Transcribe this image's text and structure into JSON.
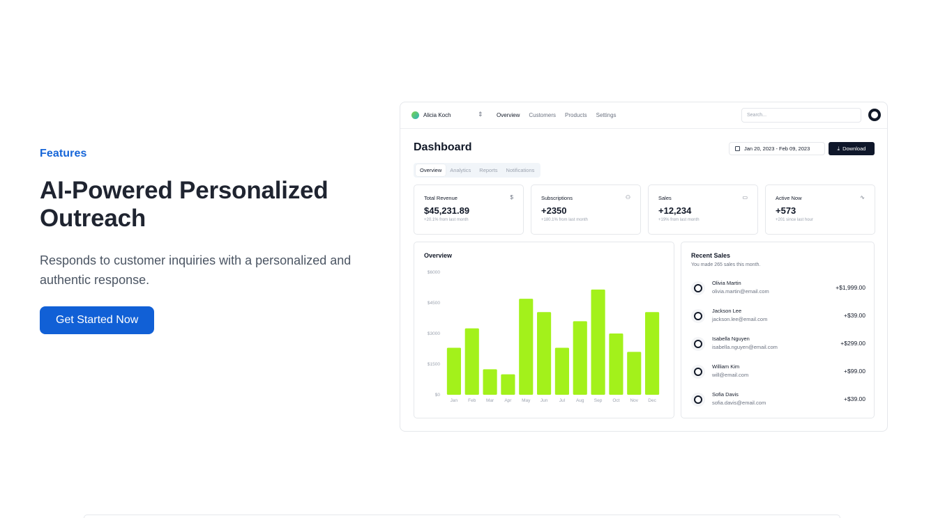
{
  "hero": {
    "eyebrow": "Features",
    "headline": "AI-Powered Personalized Outreach",
    "description": "Responds to customer inquiries with a personalized and authentic response.",
    "cta_label": "Get Started Now"
  },
  "dashboard": {
    "team_name": "Alicia Koch",
    "nav": [
      "Overview",
      "Customers",
      "Products",
      "Settings"
    ],
    "search_placeholder": "Search...",
    "title": "Dashboard",
    "date_range": "Jan 20, 2023 - Feb 09, 2023",
    "download_label": "Download",
    "tabs": [
      "Overview",
      "Analytics",
      "Reports",
      "Notifications"
    ],
    "stats": [
      {
        "label": "Total Revenue",
        "value": "$45,231.89",
        "sub": "+20.1% from last month",
        "icon": "dollar-icon"
      },
      {
        "label": "Subscriptions",
        "value": "+2350",
        "sub": "+180.1% from last month",
        "icon": "users-icon"
      },
      {
        "label": "Sales",
        "value": "+12,234",
        "sub": "+19% from last month",
        "icon": "credit-card-icon"
      },
      {
        "label": "Active Now",
        "value": "+573",
        "sub": "+201 since last hour",
        "icon": "activity-icon"
      }
    ],
    "overview_title": "Overview",
    "recent": {
      "title": "Recent Sales",
      "subtitle": "You made 265 sales this month.",
      "sales": [
        {
          "name": "Olivia Martin",
          "email": "olivia.martin@email.com",
          "amount": "+$1,999.00"
        },
        {
          "name": "Jackson Lee",
          "email": "jackson.lee@email.com",
          "amount": "+$39.00"
        },
        {
          "name": "Isabella Nguyen",
          "email": "isabella.nguyen@email.com",
          "amount": "+$299.00"
        },
        {
          "name": "William Kim",
          "email": "will@email.com",
          "amount": "+$99.00"
        },
        {
          "name": "Sofia Davis",
          "email": "sofia.davis@email.com",
          "amount": "+$39.00"
        }
      ]
    }
  },
  "chart_data": {
    "type": "bar",
    "categories": [
      "Jan",
      "Feb",
      "Mar",
      "Apr",
      "May",
      "Jun",
      "Jul",
      "Aug",
      "Sep",
      "Oct",
      "Nov",
      "Dec"
    ],
    "values": [
      2300,
      3250,
      1250,
      1000,
      4700,
      4050,
      2300,
      3600,
      5150,
      3000,
      2100,
      4050
    ],
    "yticks": [
      "$0",
      "$1500",
      "$3000",
      "$4500",
      "$6000"
    ],
    "ylim": [
      0,
      6000
    ],
    "bar_color": "#a3f11b",
    "title": "Overview"
  },
  "colors": {
    "accent": "#1160d6",
    "dark": "#0f172a"
  }
}
